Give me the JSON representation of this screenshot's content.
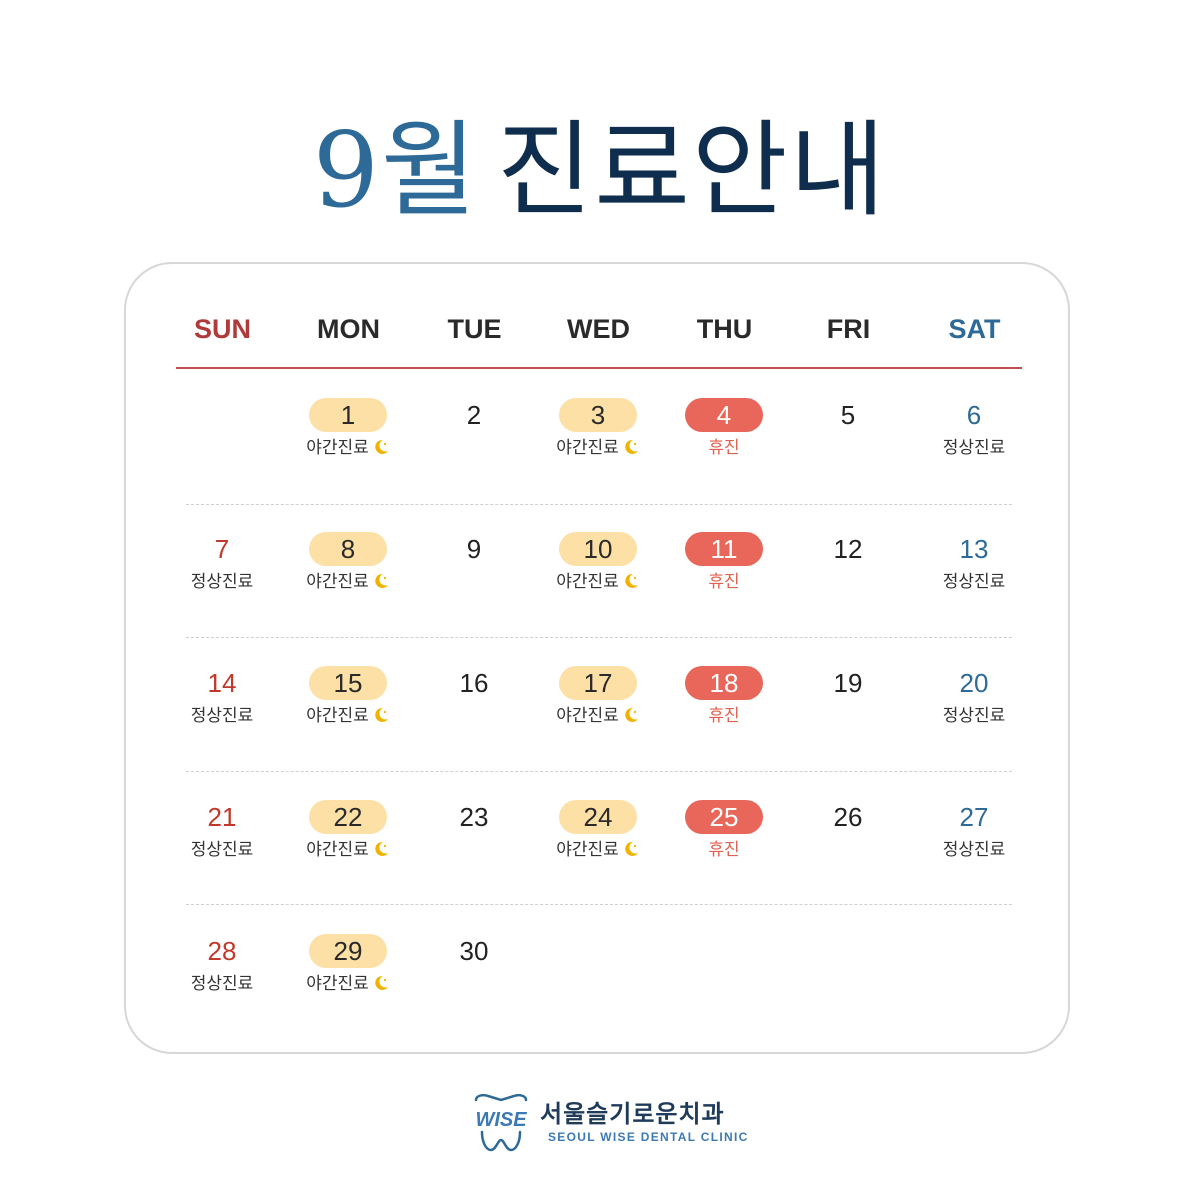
{
  "title": {
    "month": "9월",
    "rest": "진료안내"
  },
  "weekdays": [
    "SUN",
    "MON",
    "TUE",
    "WED",
    "THU",
    "FRI",
    "SAT"
  ],
  "legend_labels": {
    "night": "야간진료",
    "normal": "정상진료",
    "closed": "휴진"
  },
  "colors": {
    "night_bg": "#fde0a6",
    "closed_bg": "#e8675a",
    "sunday": "#c0392b",
    "saturday": "#2e6a97",
    "moon": "#f0b400"
  },
  "days": [
    {
      "day": "1",
      "type": "night"
    },
    {
      "day": "2",
      "type": "plain"
    },
    {
      "day": "3",
      "type": "night"
    },
    {
      "day": "4",
      "type": "closed"
    },
    {
      "day": "5",
      "type": "plain"
    },
    {
      "day": "6",
      "type": "sat"
    },
    {
      "day": "7",
      "type": "sun"
    },
    {
      "day": "8",
      "type": "night"
    },
    {
      "day": "9",
      "type": "plain"
    },
    {
      "day": "10",
      "type": "night"
    },
    {
      "day": "11",
      "type": "closed"
    },
    {
      "day": "12",
      "type": "plain"
    },
    {
      "day": "13",
      "type": "sat"
    },
    {
      "day": "14",
      "type": "sun"
    },
    {
      "day": "15",
      "type": "night"
    },
    {
      "day": "16",
      "type": "plain"
    },
    {
      "day": "17",
      "type": "night"
    },
    {
      "day": "18",
      "type": "closed"
    },
    {
      "day": "19",
      "type": "plain"
    },
    {
      "day": "20",
      "type": "sat"
    },
    {
      "day": "21",
      "type": "sun"
    },
    {
      "day": "22",
      "type": "night"
    },
    {
      "day": "23",
      "type": "plain"
    },
    {
      "day": "24",
      "type": "night"
    },
    {
      "day": "25",
      "type": "closed"
    },
    {
      "day": "26",
      "type": "plain"
    },
    {
      "day": "27",
      "type": "sat"
    },
    {
      "day": "28",
      "type": "sun"
    },
    {
      "day": "29",
      "type": "night"
    },
    {
      "day": "30",
      "type": "plain"
    }
  ],
  "first_weekday": 1,
  "footer": {
    "logo_text": "WISE",
    "clinic_name": "서울슬기로운치과",
    "clinic_name_en": "SEOUL WISE DENTAL CLINIC"
  }
}
